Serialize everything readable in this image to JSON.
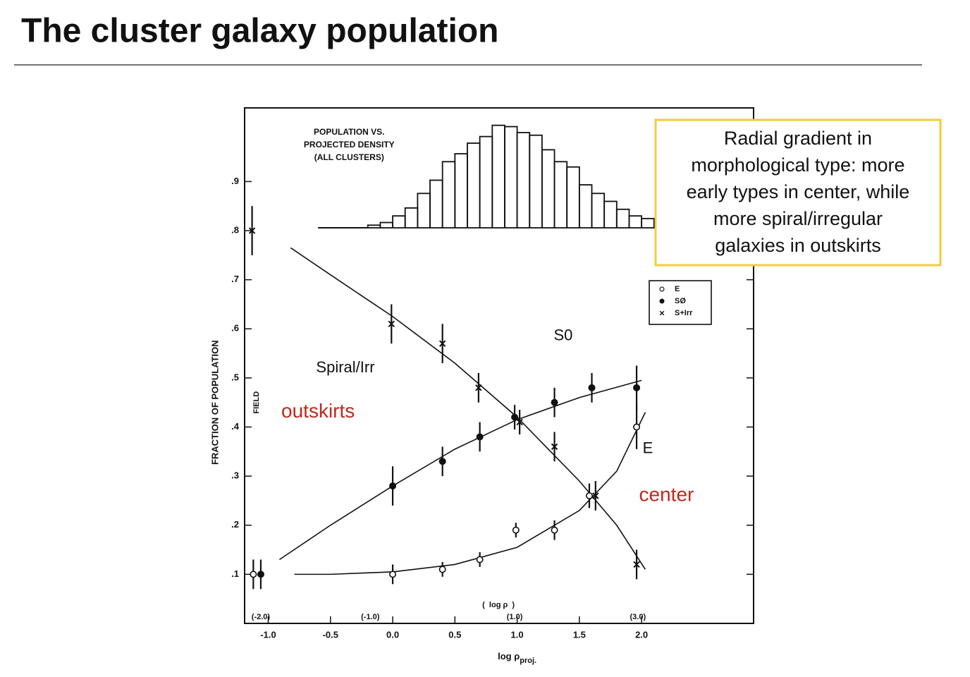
{
  "chart_data": {
    "type": "scatter",
    "title": "The cluster galaxy population",
    "xlabel": "log ρ",
    "xlabel_sub": "proj.",
    "ylabel": "FRACTION OF POPULATION",
    "field_label": "FIELD",
    "xlim": [
      -1.19,
      2.9
    ],
    "ylim": [
      0,
      1.05
    ],
    "xticks": [
      {
        "value": -1,
        "label": "-1.0"
      },
      {
        "value": -0.5,
        "label": "-0.5"
      },
      {
        "value": 0,
        "label": "0.0"
      },
      {
        "value": 0.5,
        "label": "0.5"
      },
      {
        "value": 1,
        "label": "1.0"
      },
      {
        "value": 1.5,
        "label": "1.5"
      },
      {
        "value": 2,
        "label": "2.0"
      }
    ],
    "yticks": [
      {
        "value": 0.1,
        "label": ".1"
      },
      {
        "value": 0.2,
        "label": ".2"
      },
      {
        "value": 0.3,
        "label": ".3"
      },
      {
        "value": 0.4,
        "label": ".4"
      },
      {
        "value": 0.5,
        "label": ".5"
      },
      {
        "value": 0.6,
        "label": ".6"
      },
      {
        "value": 0.7,
        "label": ".7"
      },
      {
        "value": 0.8,
        "label": ".8"
      },
      {
        "value": 0.9,
        "label": ".9"
      }
    ],
    "x2label": "(  log ρ  )",
    "x2ticks": [
      {
        "value": -1.06,
        "label": "(-2.0)"
      },
      {
        "value": -0.18,
        "label": "(-1.0)"
      },
      {
        "value": 0.98,
        "label": "(1.0)"
      },
      {
        "value": 1.97,
        "label": "(3.0)"
      }
    ],
    "series": [
      {
        "name": "E",
        "marker": "open-circle",
        "color": "#111111",
        "x": [
          -1.12,
          0,
          0.4,
          0.7,
          0.99,
          1.3,
          1.58,
          1.96
        ],
        "values": [
          0.1,
          0.1,
          0.11,
          0.13,
          0.19,
          0.19,
          0.26,
          0.4
        ],
        "errors": [
          0.03,
          0.02,
          0.015,
          0.015,
          0.015,
          0.02,
          0.025,
          0.045
        ]
      },
      {
        "name": "SØ",
        "marker": "filled-circle",
        "color": "#111111",
        "x": [
          -1.06,
          0,
          0.4,
          0.7,
          0.98,
          1.3,
          1.6,
          1.96
        ],
        "values": [
          0.1,
          0.28,
          0.33,
          0.38,
          0.42,
          0.45,
          0.48,
          0.48
        ],
        "errors": [
          0.03,
          0.04,
          0.03,
          0.03,
          0.025,
          0.03,
          0.03,
          0.045
        ]
      },
      {
        "name": "S+Irr",
        "marker": "cross",
        "color": "#111111",
        "x": [
          -1.13,
          -0.01,
          0.4,
          0.69,
          1.02,
          1.3,
          1.63,
          1.96
        ],
        "values": [
          0.8,
          0.61,
          0.57,
          0.48,
          0.41,
          0.36,
          0.26,
          0.12
        ],
        "errors": [
          0.05,
          0.04,
          0.04,
          0.03,
          0.025,
          0.03,
          0.03,
          0.03
        ]
      }
    ],
    "fits": [
      {
        "x": [
          -0.82,
          -0.5,
          0,
          0.5,
          1,
          1.5,
          1.8,
          2.03
        ],
        "y": [
          0.765,
          0.71,
          0.625,
          0.53,
          0.42,
          0.29,
          0.2,
          0.11
        ]
      },
      {
        "x": [
          -0.91,
          -0.5,
          0,
          0.5,
          1,
          1.5,
          2
        ],
        "y": [
          0.13,
          0.2,
          0.28,
          0.355,
          0.415,
          0.46,
          0.495
        ]
      },
      {
        "x": [
          -0.79,
          -0.5,
          0,
          0.5,
          1,
          1.5,
          1.8,
          2.03
        ],
        "y": [
          0.1,
          0.1,
          0.105,
          0.12,
          0.155,
          0.23,
          0.31,
          0.43
        ]
      }
    ],
    "inset": {
      "title": [
        "POPULATION VS.",
        "PROJECTED DENSITY",
        "(ALL CLUSTERS)"
      ],
      "bins": [
        -0.2,
        -0.1,
        0,
        0.1,
        0.2,
        0.3,
        0.4,
        0.5,
        0.6,
        0.7,
        0.8,
        0.9,
        1,
        1.1,
        1.2,
        1.3,
        1.4,
        1.5,
        1.6,
        1.7,
        1.8,
        1.9,
        2,
        2.1
      ],
      "counts": [
        4,
        8,
        18,
        30,
        52,
        72,
        100,
        112,
        128,
        138,
        155,
        153,
        144,
        140,
        118,
        100,
        92,
        65,
        52,
        40,
        28,
        18,
        14
      ],
      "ylim": [
        0,
        160
      ]
    },
    "annotations": [
      {
        "text": "Spiral/Irr",
        "color": "#111111"
      },
      {
        "text": "S0",
        "color": "#111111"
      },
      {
        "text": "E",
        "color": "#111111"
      },
      {
        "text": "outskirts",
        "color": "#c0281c"
      },
      {
        "text": "center",
        "color": "#c0281c"
      }
    ],
    "callout": [
      "Radial gradient in",
      "morphological type: more",
      "early types in center, while",
      "more spiral/irregular",
      "galaxies in outskirts"
    ]
  }
}
